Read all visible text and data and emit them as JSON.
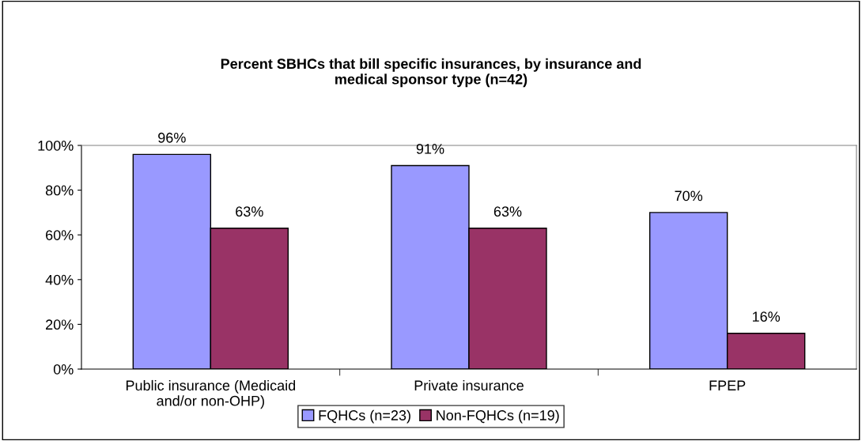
{
  "chart_data": {
    "type": "bar",
    "title": "Percent SBHCs that bill specific insurances, by insurance and\nmedical sponsor type (n=42)",
    "categories": [
      "Public insurance (Medicaid\nand/or non-OHP)",
      "Private insurance",
      "FPEP"
    ],
    "series": [
      {
        "name": "FQHCs (n=23)",
        "color": "#9999ff",
        "values": [
          96,
          91,
          70
        ],
        "value_labels": [
          "96%",
          "91%",
          "70%"
        ]
      },
      {
        "name": "Non-FQHCs (n=19)",
        "color": "#993366",
        "values": [
          63,
          63,
          16
        ],
        "value_labels": [
          "63%",
          "63%",
          "16%"
        ]
      }
    ],
    "ylim": [
      0,
      100
    ],
    "yticks": [
      {
        "value": 0,
        "label": "0%"
      },
      {
        "value": 20,
        "label": "20%"
      },
      {
        "value": 40,
        "label": "40%"
      },
      {
        "value": 60,
        "label": "60%"
      },
      {
        "value": 80,
        "label": "80%"
      },
      {
        "value": 100,
        "label": "100%"
      }
    ],
    "grid": false,
    "legend": "bottom"
  }
}
